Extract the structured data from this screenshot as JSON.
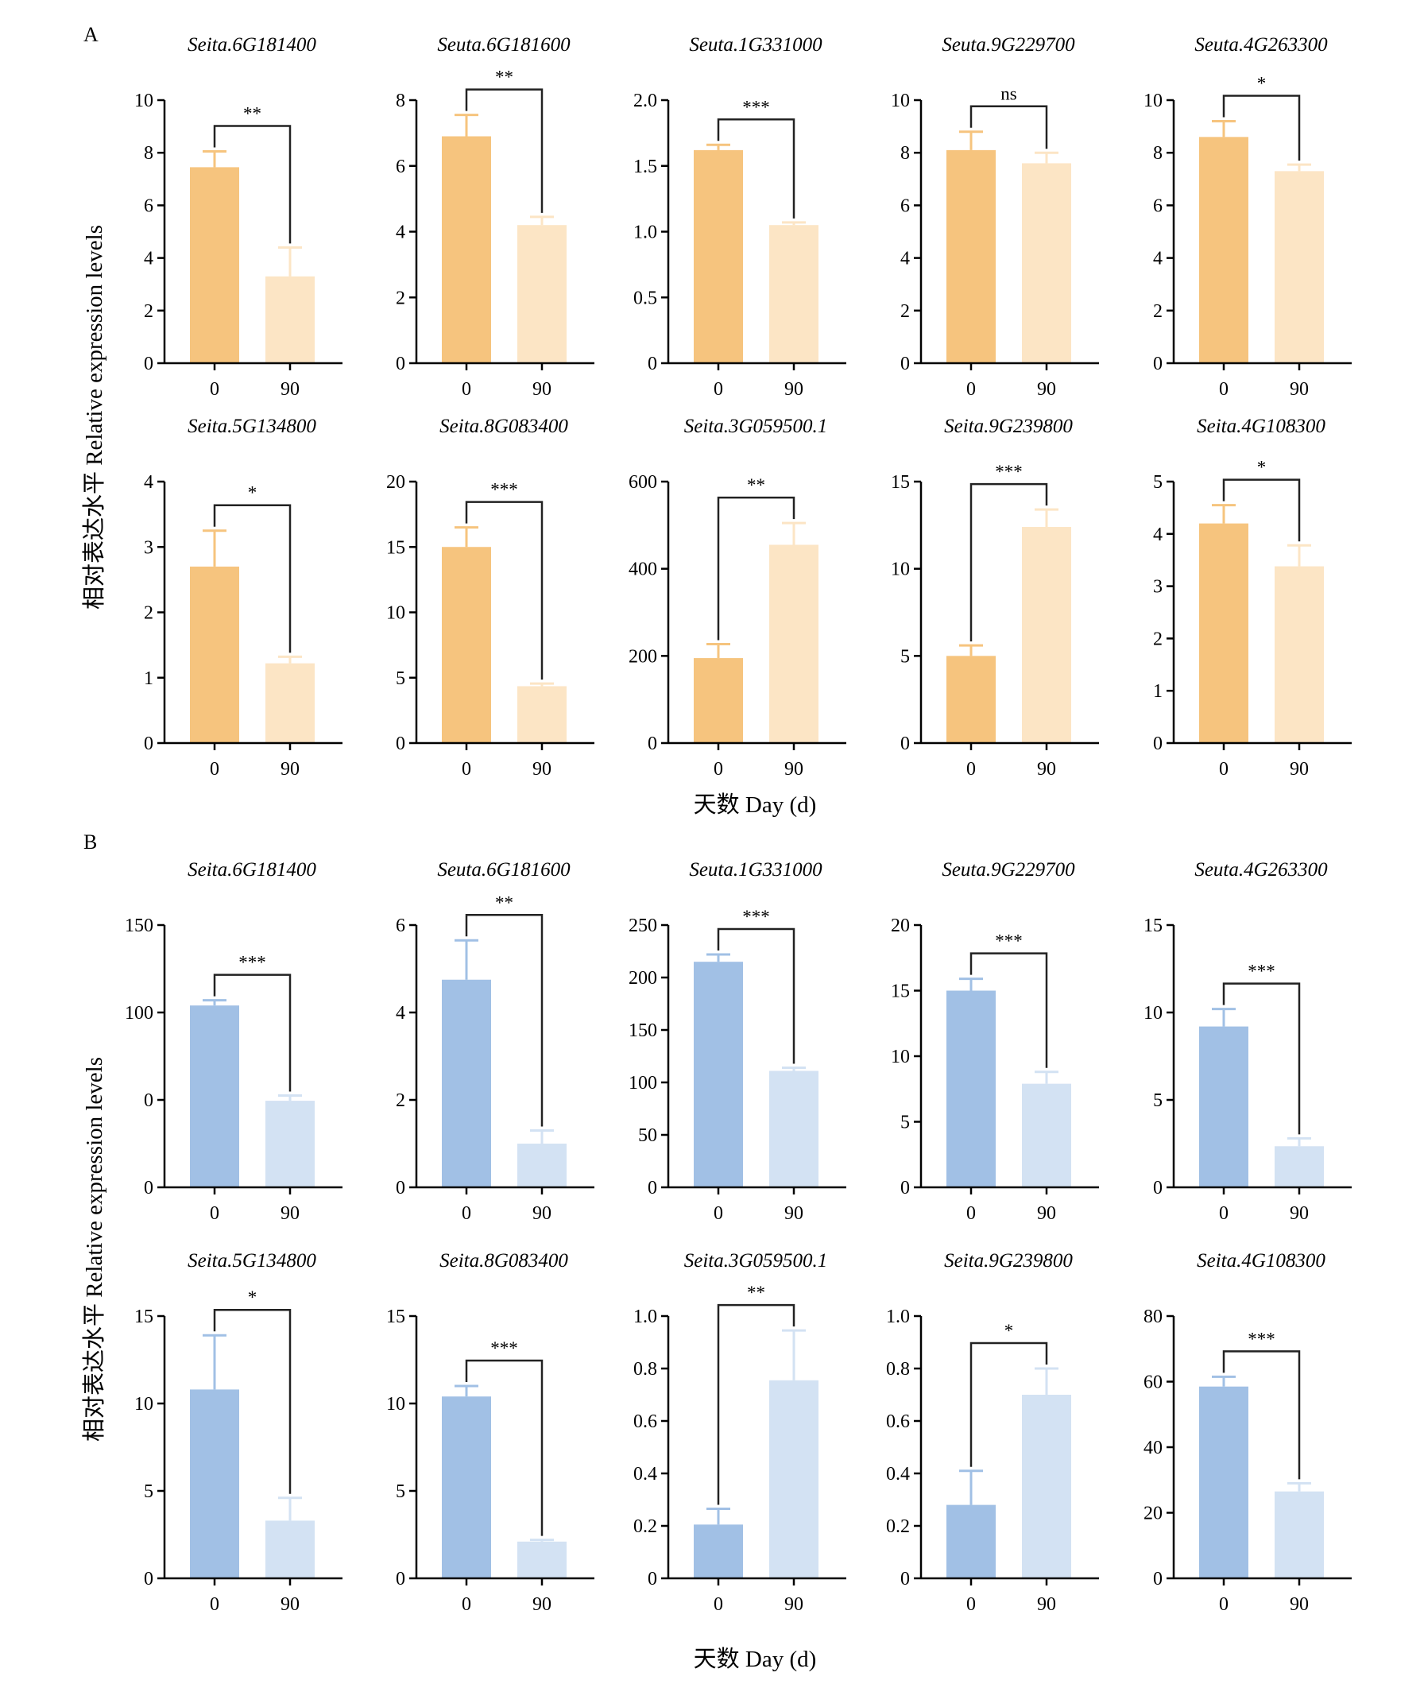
{
  "panels": [
    {
      "label": "A",
      "xlabel": "天数 Day (d)",
      "ylabel": "相对表达水平 Relative expression levels",
      "colors": {
        "day0": "#F6C47E",
        "day90": "#FCE5C5",
        "err0": "#F6C47E",
        "err90": "#FCE5C5"
      }
    },
    {
      "label": "B",
      "xlabel": "天数 Day (d)",
      "ylabel": "相对表达水平 Relative expression levels",
      "colors": {
        "day0": "#A1C0E5",
        "day90": "#D3E2F3",
        "err0": "#A1C0E5",
        "err90": "#D3E2F3"
      }
    }
  ],
  "chart_data": [
    {
      "type": "bar",
      "panel": "A",
      "title": "Seita.6G181400",
      "categories": [
        "0",
        "90"
      ],
      "values": [
        7.45,
        3.3
      ],
      "errors": [
        0.6,
        1.1
      ],
      "significance": "**",
      "ylim": [
        0,
        10
      ],
      "yticks": [
        "0",
        "2",
        "4",
        "6",
        "8",
        "10"
      ]
    },
    {
      "type": "bar",
      "panel": "A",
      "title": "Seuta.6G181600",
      "categories": [
        "0",
        "90"
      ],
      "values": [
        6.9,
        4.2
      ],
      "errors": [
        0.65,
        0.25
      ],
      "significance": "**",
      "ylim": [
        0,
        8
      ],
      "yticks": [
        "0",
        "2",
        "4",
        "6",
        "8"
      ]
    },
    {
      "type": "bar",
      "panel": "A",
      "title": "Seuta.1G331000",
      "categories": [
        "0",
        "90"
      ],
      "values": [
        1.62,
        1.05
      ],
      "errors": [
        0.04,
        0.02
      ],
      "significance": "***",
      "ylim": [
        0,
        2
      ],
      "yticks": [
        "0",
        "0.5",
        "1.0",
        "1.5",
        "2.0"
      ]
    },
    {
      "type": "bar",
      "panel": "A",
      "title": "Seuta.9G229700",
      "categories": [
        "0",
        "90"
      ],
      "values": [
        8.1,
        7.6
      ],
      "errors": [
        0.7,
        0.4
      ],
      "significance": "ns",
      "ylim": [
        0,
        10
      ],
      "yticks": [
        "0",
        "2",
        "4",
        "6",
        "8",
        "10"
      ]
    },
    {
      "type": "bar",
      "panel": "A",
      "title": "Seuta.4G263300",
      "categories": [
        "0",
        "90"
      ],
      "values": [
        8.6,
        7.3
      ],
      "errors": [
        0.6,
        0.25
      ],
      "significance": "*",
      "ylim": [
        0,
        10
      ],
      "yticks": [
        "0",
        "2",
        "4",
        "6",
        "8",
        "10"
      ]
    },
    {
      "type": "bar",
      "panel": "A",
      "title": "Seita.5G134800",
      "categories": [
        "0",
        "90"
      ],
      "values": [
        2.7,
        1.22
      ],
      "errors": [
        0.55,
        0.1
      ],
      "significance": "*",
      "ylim": [
        0,
        4
      ],
      "yticks": [
        "0",
        "1",
        "2",
        "3",
        "4"
      ]
    },
    {
      "type": "bar",
      "panel": "A",
      "title": "Seita.8G083400",
      "categories": [
        "0",
        "90"
      ],
      "values": [
        15.0,
        4.35
      ],
      "errors": [
        1.5,
        0.2
      ],
      "significance": "***",
      "ylim": [
        0,
        20
      ],
      "yticks": [
        "0",
        "5",
        "10",
        "15",
        "20"
      ]
    },
    {
      "type": "bar",
      "panel": "A",
      "title": "Seita.3G059500.1",
      "categories": [
        "0",
        "90"
      ],
      "values": [
        195,
        455
      ],
      "errors": [
        32,
        50
      ],
      "significance": "**",
      "ylim": [
        0,
        600
      ],
      "yticks": [
        "0",
        "200",
        "400",
        "600"
      ]
    },
    {
      "type": "bar",
      "panel": "A",
      "title": "Seita.9G239800",
      "categories": [
        "0",
        "90"
      ],
      "values": [
        5.0,
        12.4
      ],
      "errors": [
        0.6,
        1.0
      ],
      "significance": "***",
      "ylim": [
        0,
        15
      ],
      "yticks": [
        "0",
        "5",
        "10",
        "15"
      ]
    },
    {
      "type": "bar",
      "panel": "A",
      "title": "Seita.4G108300",
      "categories": [
        "0",
        "90"
      ],
      "values": [
        4.2,
        3.38
      ],
      "errors": [
        0.35,
        0.4
      ],
      "significance": "*",
      "ylim": [
        0,
        5
      ],
      "yticks": [
        "0",
        "1",
        "2",
        "3",
        "4",
        "5"
      ]
    },
    {
      "type": "bar",
      "panel": "B",
      "title": "Seita.6G181400",
      "categories": [
        "0",
        "90"
      ],
      "values": [
        104,
        49.5
      ],
      "errors": [
        3,
        3
      ],
      "significance": "***",
      "ylim": [
        0,
        150
      ],
      "yticks": [
        "0",
        "0",
        "100",
        "150"
      ]
    },
    {
      "type": "bar",
      "panel": "B",
      "title": "Seuta.6G181600",
      "categories": [
        "0",
        "90"
      ],
      "values": [
        4.75,
        1.0
      ],
      "errors": [
        0.9,
        0.3
      ],
      "significance": "**",
      "ylim": [
        0,
        6
      ],
      "yticks": [
        "0",
        "2",
        "4",
        "6"
      ]
    },
    {
      "type": "bar",
      "panel": "B",
      "title": "Seuta.1G331000",
      "categories": [
        "0",
        "90"
      ],
      "values": [
        215,
        111
      ],
      "errors": [
        7,
        3
      ],
      "significance": "***",
      "ylim": [
        0,
        250
      ],
      "yticks": [
        "0",
        "50",
        "100",
        "150",
        "200",
        "250"
      ]
    },
    {
      "type": "bar",
      "panel": "B",
      "title": "Seuta.9G229700",
      "categories": [
        "0",
        "90"
      ],
      "values": [
        15.0,
        7.9
      ],
      "errors": [
        0.9,
        0.9
      ],
      "significance": "***",
      "ylim": [
        0,
        20
      ],
      "yticks": [
        "0",
        "5",
        "10",
        "15",
        "20"
      ]
    },
    {
      "type": "bar",
      "panel": "B",
      "title": "Seuta.4G263300",
      "categories": [
        "0",
        "90"
      ],
      "values": [
        9.2,
        2.35
      ],
      "errors": [
        1.0,
        0.45
      ],
      "significance": "***",
      "ylim": [
        0,
        15
      ],
      "yticks": [
        "0",
        "5",
        "10",
        "15"
      ]
    },
    {
      "type": "bar",
      "panel": "B",
      "title": "Seita.5G134800",
      "categories": [
        "0",
        "90"
      ],
      "values": [
        10.8,
        3.3
      ],
      "errors": [
        3.1,
        1.3
      ],
      "significance": "*",
      "ylim": [
        0,
        15
      ],
      "yticks": [
        "0",
        "5",
        "10",
        "15"
      ]
    },
    {
      "type": "bar",
      "panel": "B",
      "title": "Seita.8G083400",
      "categories": [
        "0",
        "90"
      ],
      "values": [
        10.4,
        2.1
      ],
      "errors": [
        0.6,
        0.1
      ],
      "significance": "***",
      "ylim": [
        0,
        15
      ],
      "yticks": [
        "0",
        "5",
        "10",
        "15"
      ]
    },
    {
      "type": "bar",
      "panel": "B",
      "title": "Seita.3G059500.1",
      "categories": [
        "0",
        "90"
      ],
      "values": [
        0.205,
        0.755
      ],
      "errors": [
        0.06,
        0.19
      ],
      "significance": "**",
      "ylim": [
        0,
        1
      ],
      "yticks": [
        "0",
        "0.2",
        "0.4",
        "0.6",
        "0.8",
        "1.0"
      ]
    },
    {
      "type": "bar",
      "panel": "B",
      "title": "Seita.9G239800",
      "categories": [
        "0",
        "90"
      ],
      "values": [
        0.28,
        0.7
      ],
      "errors": [
        0.13,
        0.1
      ],
      "significance": "*",
      "ylim": [
        0,
        1
      ],
      "yticks": [
        "0",
        "0.2",
        "0.4",
        "0.6",
        "0.8",
        "1.0"
      ]
    },
    {
      "type": "bar",
      "panel": "B",
      "title": "Seita.4G108300",
      "categories": [
        "0",
        "90"
      ],
      "values": [
        58.5,
        26.5
      ],
      "errors": [
        3,
        2.5
      ],
      "significance": "***",
      "ylim": [
        0,
        80
      ],
      "yticks": [
        "0",
        "20",
        "40",
        "60",
        "80"
      ]
    }
  ]
}
